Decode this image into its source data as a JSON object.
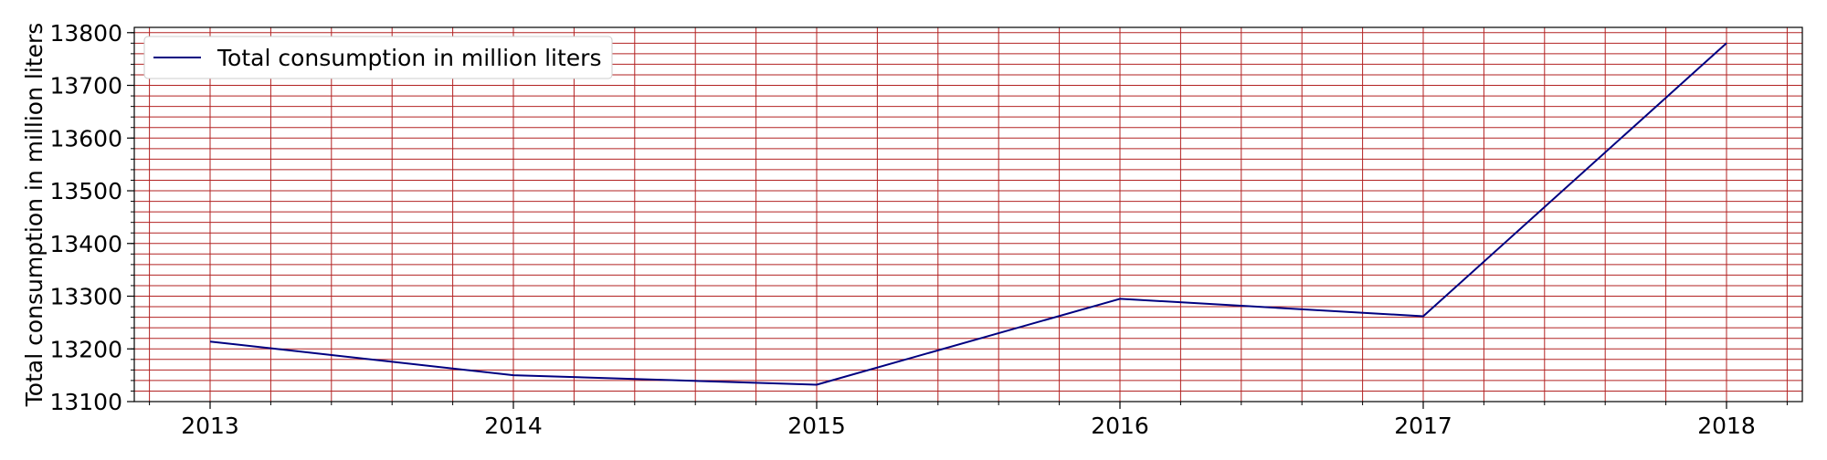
{
  "chart_data": {
    "type": "line",
    "title": "",
    "xlabel": "",
    "ylabel": "Total consumption in million liters",
    "x": [
      2013,
      2014,
      2015,
      2016,
      2017,
      2018
    ],
    "series": [
      {
        "name": "Total consumption in million liters",
        "color": "#000080",
        "values": [
          13214,
          13150,
          13132,
          13295,
          13262,
          13780
        ]
      }
    ],
    "xlim": [
      2012.75,
      2018.25
    ],
    "ylim": [
      13100,
      13810
    ],
    "x_ticks": [
      "2013",
      "2014",
      "2015",
      "2016",
      "2017",
      "2018"
    ],
    "y_ticks": [
      "13100",
      "13200",
      "13300",
      "13400",
      "13500",
      "13600",
      "13700",
      "13800"
    ],
    "grid": true,
    "grid_color": "#b22222",
    "legend": "top-left"
  }
}
